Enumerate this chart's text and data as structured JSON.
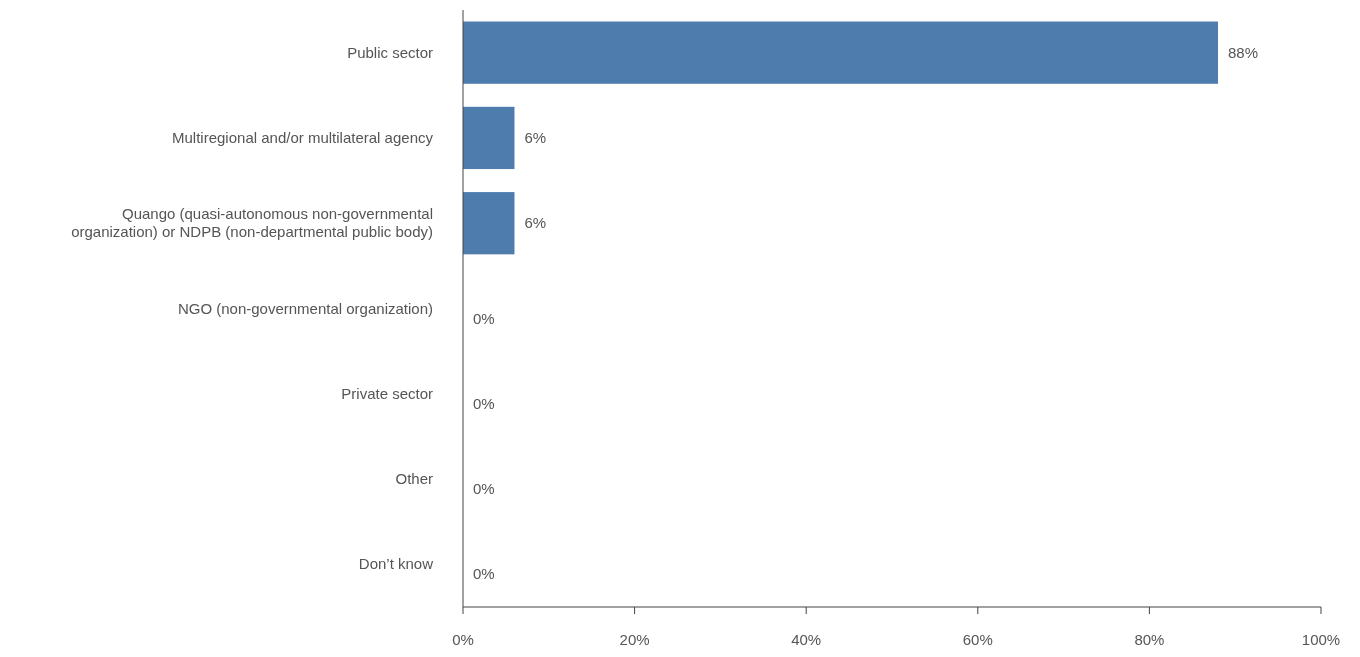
{
  "chart_data": {
    "type": "bar",
    "orientation": "horizontal",
    "categories": [
      "Public sector",
      "Multiregional and/or multilateral agency",
      "Quango (quasi-autonomous non-governmental\norganization) or NDPB (non-departmental public body)",
      "NGO (non-governmental organization)",
      "Private sector",
      "Other",
      "Don’t know"
    ],
    "values": [
      88,
      6,
      6,
      0,
      0,
      0,
      0
    ],
    "value_labels": [
      "88%",
      "6%",
      "6%",
      "0%",
      "0%",
      "0%",
      "0%"
    ],
    "color": "#4e7dad",
    "xlim": [
      0,
      100
    ],
    "xticks": [
      {
        "value": 0,
        "label": "0%"
      },
      {
        "value": 20,
        "label": "20%"
      },
      {
        "value": 40,
        "label": "40%"
      },
      {
        "value": 60,
        "label": "60%"
      },
      {
        "value": 80,
        "label": "80%"
      },
      {
        "value": 100,
        "label": "100%"
      }
    ],
    "tick_labels": "x"
  }
}
